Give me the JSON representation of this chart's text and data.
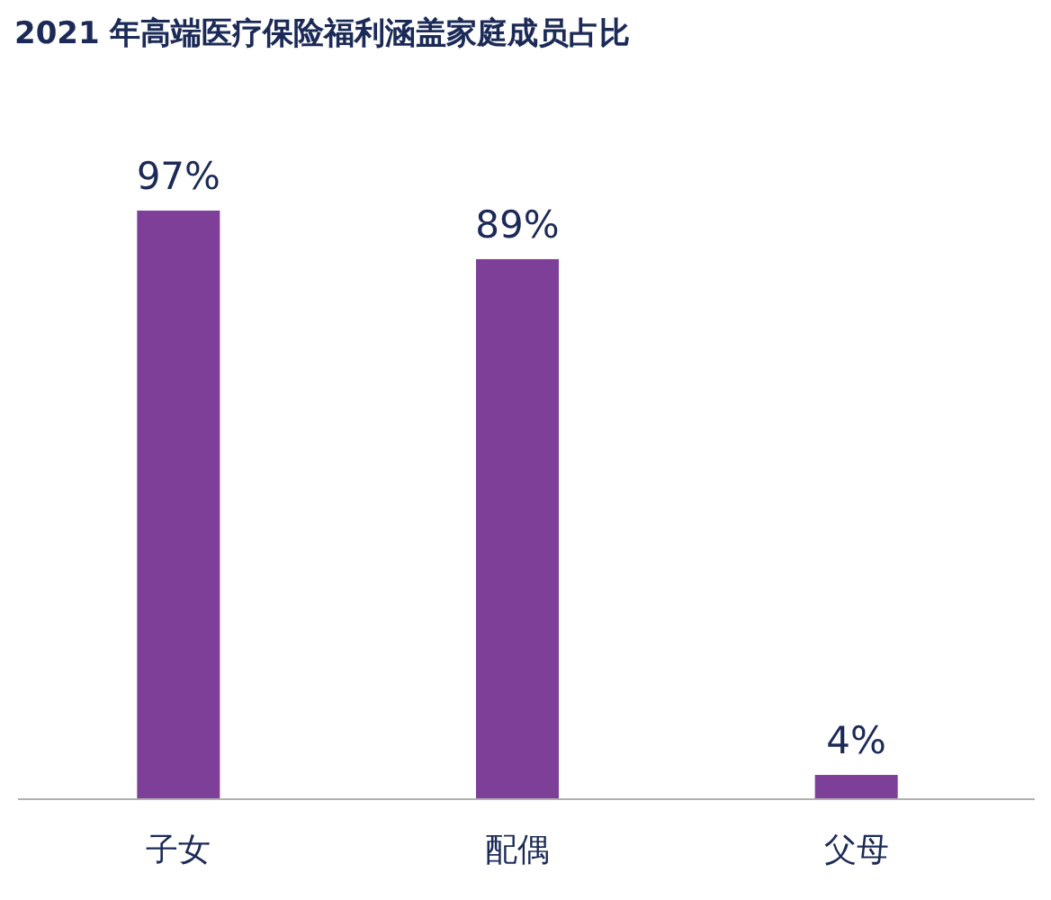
{
  "chart_data": {
    "type": "bar",
    "title": "2021 年高端医疗保险福利涵盖家庭成员占比",
    "categories": [
      "子女",
      "配偶",
      "父母"
    ],
    "values": [
      97,
      89,
      4
    ],
    "value_labels": [
      "97%",
      "89%",
      "4%"
    ],
    "color": "#7d3f98"
  }
}
